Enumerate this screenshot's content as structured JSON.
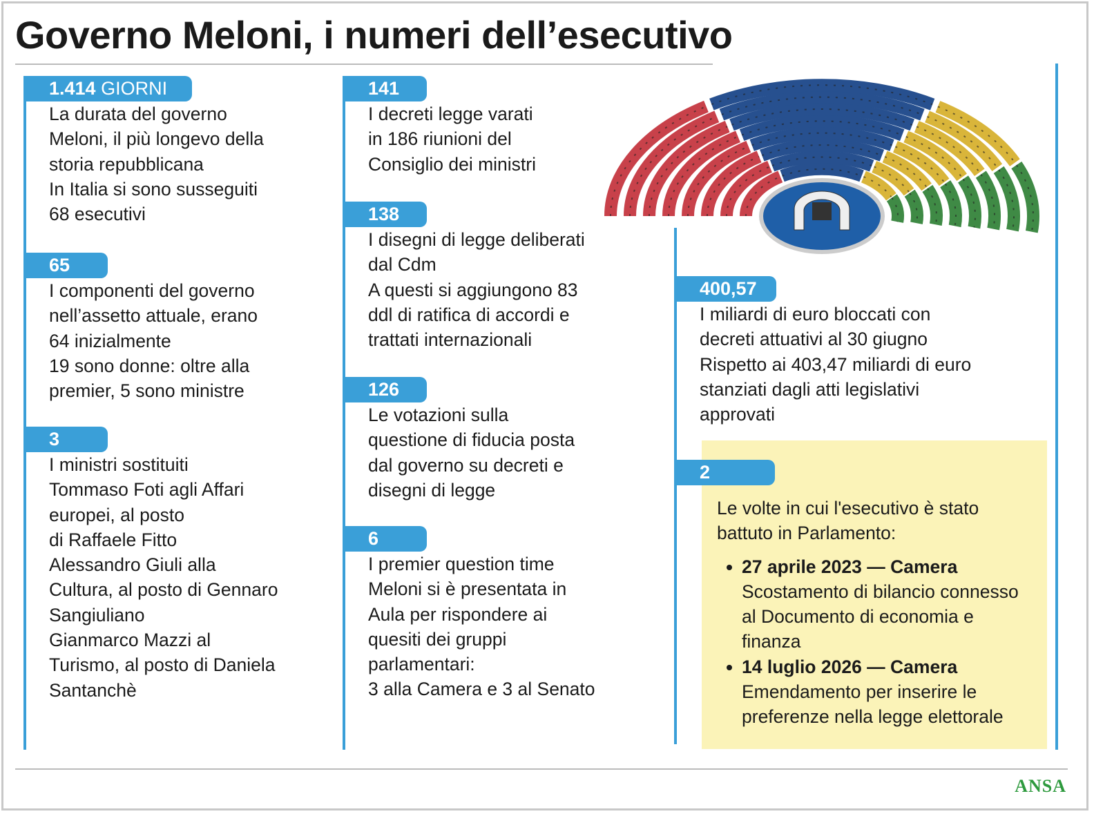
{
  "title": "Governo Meloni, i numeri dell’esecutivo",
  "columns": [
    {
      "items": [
        {
          "number": "1.414",
          "unit": "GIORNI",
          "lines": [
            "La durata del governo",
            "Meloni, il più longevo della",
            "storia repubblicana",
            "In Italia si sono susseguiti",
            "68 esecutivi"
          ]
        },
        {
          "number": "65",
          "lines": [
            "I componenti del governo",
            "nell’assetto attuale, erano",
            "64 inizialmente",
            "19 sono donne: oltre alla",
            "premier, 5 sono ministre"
          ]
        },
        {
          "number": "3",
          "lines": [
            "I ministri sostituiti",
            "Tommaso Foti agli Affari",
            "europei, al posto",
            "di Raffaele Fitto",
            "Alessandro Giuli alla",
            "Cultura, al posto di Gennaro",
            "Sangiuliano",
            "Gianmarco Mazzi al",
            "Turismo, al posto di Daniela",
            "Santanchè"
          ]
        }
      ]
    },
    {
      "items": [
        {
          "number": "141",
          "lines": [
            "I decreti legge varati",
            "in 186 riunioni del",
            "Consiglio dei ministri"
          ]
        },
        {
          "number": "138",
          "lines": [
            "I disegni di legge deliberati",
            "dal Cdm",
            "A questi si aggiungono 83",
            "ddl di ratifica di accordi e",
            "trattati internazionali"
          ]
        },
        {
          "number": "126",
          "lines": [
            "Le votazioni sulla",
            "questione di fiducia posta",
            "dal governo su decreti e",
            "disegni di legge"
          ]
        },
        {
          "number": "6",
          "lines": [
            "I premier question time",
            "Meloni si è presentata in",
            "Aula per rispondere ai",
            "quesiti dei gruppi",
            "parlamentari:",
            "3 alla Camera e 3 al Senato"
          ]
        }
      ]
    },
    {
      "items": [
        {
          "number": "400,57",
          "lines": [
            "I miliardi di euro bloccati con",
            "decreti attuativi al 30 giugno",
            "Rispetto ai 403,47 miliardi di euro",
            "stanziati dagli atti legislativi",
            "approvati"
          ]
        }
      ]
    }
  ],
  "highlight": {
    "number": "2",
    "lines": [
      "Le volte in cui l'esecutivo è stato",
      "battuto in Parlamento:"
    ],
    "bullets": [
      {
        "heading": "27 aprile 2023 — Camera",
        "lines": [
          "Scostamento di bilancio connesso",
          "al Documento di economia e",
          "finanza"
        ]
      },
      {
        "heading": "14 luglio 2026 — Camera",
        "lines": [
          "Emendamento per inserire le",
          "preferenze nella legge elettorale"
        ]
      }
    ]
  },
  "source": "ANSA"
}
